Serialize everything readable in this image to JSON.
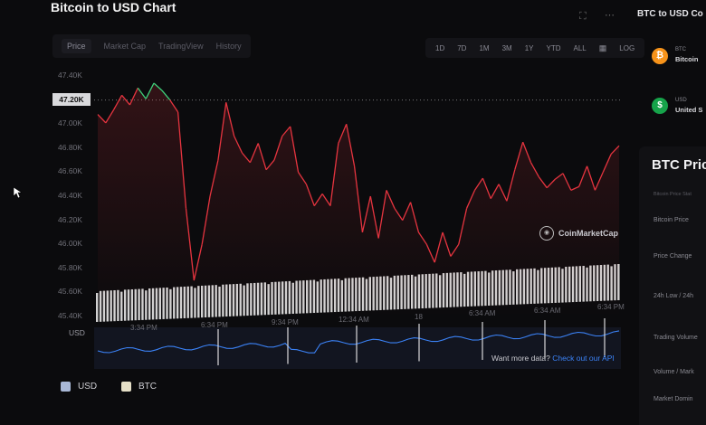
{
  "header": {
    "title": "Bitcoin to USD Chart"
  },
  "tabs": [
    "Price",
    "Market Cap",
    "TradingView",
    "History"
  ],
  "ranges": [
    "1D",
    "7D",
    "1M",
    "3M",
    "1Y",
    "YTD",
    "ALL",
    "▦",
    "LOG"
  ],
  "icons": {
    "fullscreen": "fullscreen-icon",
    "more": "more-icon",
    "calendar": "calendar-icon",
    "watermark": "coinmarketcap-logo-icon",
    "cursor": "mouse-cursor-icon",
    "btc": "bitcoin-icon",
    "usd": "dollar-icon"
  },
  "colors": {
    "up": "#3ecf7a",
    "down": "#e5343f",
    "usd_series": "#3b82f6",
    "volume": "#e8e8e8",
    "btc_icon": "#f7931a",
    "usd_icon": "#16a34a",
    "link": "#3b82f6"
  },
  "chart_data": {
    "type": "line",
    "y_ticks": [
      "47.40K",
      "47.20K",
      "47.00K",
      "46.80K",
      "46.60K",
      "46.40K",
      "46.20K",
      "46.00K",
      "45.80K",
      "45.60K",
      "45.40K"
    ],
    "ylim": [
      45400,
      47400
    ],
    "current_price_label": "47.20K",
    "x_ticks": [
      "3:34 PM",
      "6:34 PM",
      "9:34 PM",
      "12:34 AM",
      "18",
      "6:34 AM",
      "6:34 AM",
      "6:34 PM"
    ],
    "lower_axis_label": "USD",
    "series": [
      {
        "name": "USD",
        "values": [
          47080,
          47010,
          47120,
          47240,
          47160,
          47300,
          47210,
          47340,
          47280,
          47200,
          47100,
          46300,
          45700,
          46000,
          46400,
          46700,
          47180,
          46900,
          46760,
          46680,
          46840,
          46620,
          46700,
          46900,
          46980,
          46600,
          46500,
          46320,
          46420,
          46320,
          46840,
          47000,
          46650,
          46100,
          46400,
          46050,
          46450,
          46300,
          46200,
          46350,
          46100,
          46000,
          45850,
          46100,
          45900,
          46000,
          46300,
          46450,
          46550,
          46380,
          46500,
          46360,
          46620,
          46850,
          46680,
          46560,
          46470,
          46540,
          46590,
          46450,
          46480,
          46650,
          46450,
          46600,
          46750,
          46820
        ]
      }
    ],
    "legend": [
      "USD",
      "BTC"
    ]
  },
  "watermark": "CoinMarketCap",
  "api_prompt": {
    "text": "Want more data?",
    "link": "Check out our API"
  },
  "sidebar": {
    "title": "BTC to USD Co",
    "coins": [
      {
        "symbol": "BTC",
        "name": "Bitcoin",
        "glyph": "₿"
      },
      {
        "symbol": "USD",
        "name": "United S",
        "glyph": "$"
      }
    ],
    "stats_title": "BTC Price",
    "stats_subtitle": "Bitcoin Price Stat",
    "stats": [
      "Bitcoin Price",
      "Price Change",
      "24h Low / 24h",
      "Trading Volume",
      "Volume / Mark",
      "Market Domin"
    ]
  }
}
